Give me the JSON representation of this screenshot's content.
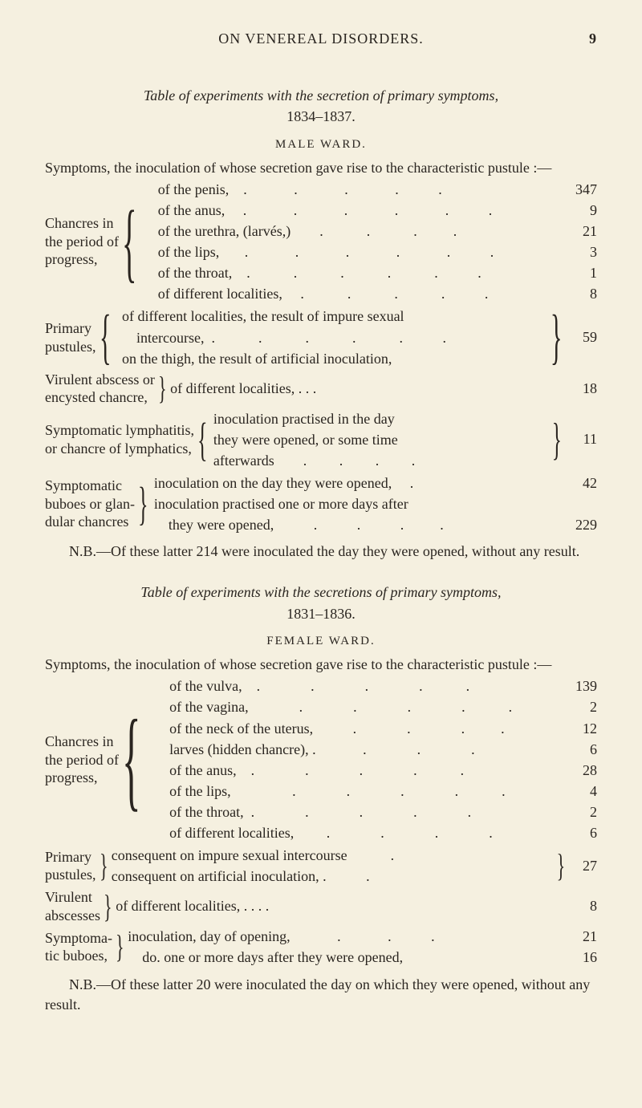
{
  "page": {
    "running_head": "ON VENEREAL DISORDERS.",
    "page_number": "9",
    "background_color": "#f5f0e0",
    "text_color": "#2a2520",
    "font_family": "Times New Roman, Georgia, serif",
    "body_fontsize_pt": 13
  },
  "section1": {
    "title_line1": "Table of experiments with the secretion of primary symptoms,",
    "title_line2": "1834–1837.",
    "ward": "MALE WARD.",
    "intro": "Symptoms, the inoculation of whose secretion gave rise to the characteristic pustule :—",
    "block1": {
      "lhs": [
        "Chancres in",
        "the period of",
        "progress,"
      ],
      "items": [
        {
          "label": "of the penis,    .             .             .             .           .",
          "value": "347"
        },
        {
          "label": "of the anus,     .             .             .             .             .           .",
          "value": "9"
        },
        {
          "label": "of the urethra, (larvés,)        .            .            .          .",
          "value": "21"
        },
        {
          "label": "of the lips,       .             .             .             .             .           .",
          "value": "3"
        },
        {
          "label": "of the throat,    .            .            .            .            .           .",
          "value": "1"
        },
        {
          "label": "of different localities,     .            .            .            .           .",
          "value": "8"
        }
      ]
    },
    "block2": {
      "lhs": [
        "Primary",
        "pustules,"
      ],
      "items": [
        "of different localities, the result of impure sexual",
        "    intercourse,  .            .            .            .            .           .",
        "on the thigh, the result of artificial inoculation,"
      ],
      "value": "59"
    },
    "block3": {
      "lhs": [
        "Virulent abscess or",
        "  encysted chancre,"
      ],
      "mid": "of different localities,          .          .          .",
      "value": "18"
    },
    "block4": {
      "lhs": [
        "Symptomatic lymphatitis,",
        "  or chancre of lymphatics,"
      ],
      "items": [
        "inoculation practised in the day",
        "they were opened, or some time",
        "afterwards        .         .         .         ."
      ],
      "value": "11"
    },
    "block5": {
      "lhs": [
        "Symptomatic",
        "buboes or glan-",
        "dular chancres"
      ],
      "items": [
        {
          "label": "inoculation on the day they were opened,     .",
          "value": "42"
        },
        {
          "label": "inoculation practised one or more days after",
          "value": ""
        },
        {
          "label": "    they were opened,           .           .           .          .",
          "value": "229"
        }
      ]
    },
    "nb": "N.B.—Of these latter 214 were inoculated the day they were opened, without any result."
  },
  "section2": {
    "title_line1": "Table of experiments with the secretions of primary symptoms,",
    "title_line2": "1831–1836.",
    "ward": "FEMALE WARD.",
    "intro": "Symptoms, the inoculation of whose secretion gave rise to the characteristic pustule :—",
    "block1": {
      "lhs": [
        "Chancres in",
        "the period of",
        "progress,"
      ],
      "items": [
        {
          "label": "of the vulva,    .              .              .              .            .",
          "value": "139"
        },
        {
          "label": "of the vagina,              .              .              .              .            .",
          "value": "2"
        },
        {
          "label": "of the neck of the uterus,           .              .              .          .",
          "value": "12"
        },
        {
          "label": "larves (hidden chancre), .             .              .              .",
          "value": "6"
        },
        {
          "label": "of the anus,    .              .              .              .            .",
          "value": "28"
        },
        {
          "label": "of the lips,                 .              .              .              .            .",
          "value": "4"
        },
        {
          "label": "of the throat,  .              .              .              .              .",
          "value": "2"
        },
        {
          "label": "of different localities,         .              .              .              .",
          "value": "6"
        }
      ]
    },
    "block2": {
      "lhs": [
        "Primary",
        "pustules,"
      ],
      "items": [
        "consequent on impure sexual intercourse            .",
        "consequent on artificial inoculation, .           ."
      ],
      "value": "27"
    },
    "block3": {
      "lhs": [
        "Virulent",
        "abscesses"
      ],
      "mid": "of different localities,      .            .            .            .",
      "value": "8"
    },
    "block4": {
      "lhs": [
        "Symptoma-",
        "tic buboes,"
      ],
      "items": [
        {
          "label": "inoculation, day of opening,             .             .           .",
          "value": "21"
        },
        {
          "label": "    do. one or more days after they were opened,",
          "value": "16"
        }
      ]
    },
    "nb": "N.B.—Of these latter 20 were inoculated the day on which they were opened, without any result."
  }
}
